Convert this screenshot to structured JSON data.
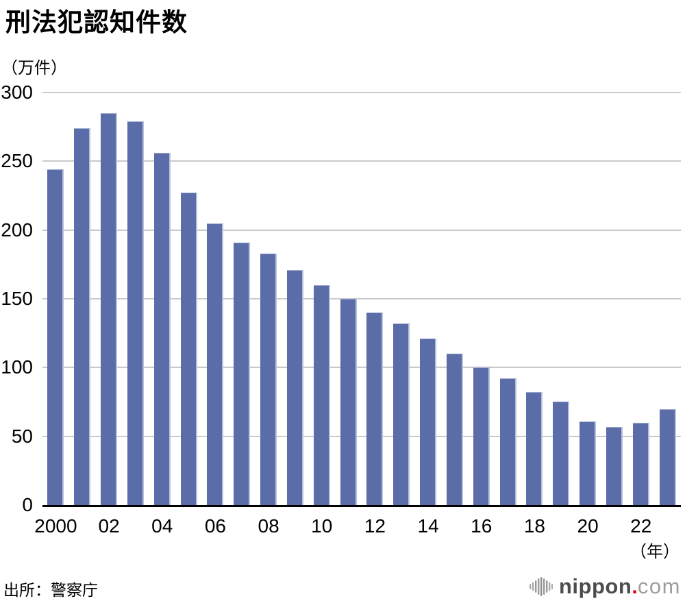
{
  "title": "刑法犯認知件数",
  "y_unit_label": "（万件）",
  "x_unit_label": "（年）",
  "source": "出所：警察庁",
  "logo": {
    "icon": "soundwave-icon",
    "brand": "nippon",
    "dot": ".",
    "tld": "com",
    "brand_color": "#4d4d4d",
    "dot_color": "#e60012",
    "tld_color": "#9e9e9e"
  },
  "colors": {
    "bar": "#5b6da8",
    "bar_edge": "#b9c1da",
    "grid": "#c9c9c9",
    "axis": "#000000"
  },
  "chart_data": {
    "type": "bar",
    "title": "刑法犯認知件数",
    "ylabel": "（万件）",
    "xlabel": "（年）",
    "categories": [
      "2000",
      "2001",
      "2002",
      "2003",
      "2004",
      "2005",
      "2006",
      "2007",
      "2008",
      "2009",
      "2010",
      "2011",
      "2012",
      "2013",
      "2014",
      "2015",
      "2016",
      "2017",
      "2018",
      "2019",
      "2020",
      "2021",
      "2022",
      "2023"
    ],
    "values": [
      244,
      274,
      285,
      279,
      256,
      227,
      205,
      191,
      183,
      171,
      160,
      150,
      140,
      132,
      121,
      110,
      100,
      92,
      82,
      75,
      61,
      57,
      60,
      70
    ],
    "tick_labels": [
      "2000",
      "",
      "02",
      "",
      "04",
      "",
      "06",
      "",
      "08",
      "",
      "10",
      "",
      "12",
      "",
      "14",
      "",
      "16",
      "",
      "18",
      "",
      "20",
      "",
      "22",
      ""
    ],
    "yticks": [
      0,
      50,
      100,
      150,
      200,
      250,
      300
    ],
    "ylim": [
      0,
      300
    ],
    "grid": true,
    "legend": false
  }
}
